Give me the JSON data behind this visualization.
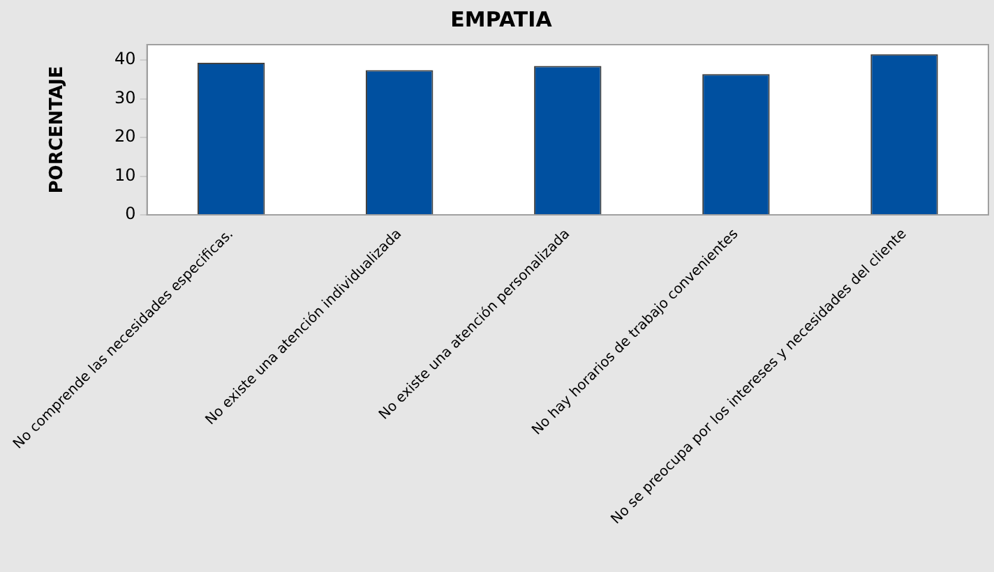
{
  "chart_data": {
    "type": "bar",
    "title": "EMPATIA",
    "ylabel": "PORCENTAJE",
    "categories": [
      "No comprende las necesidades especificas.",
      "No existe una atención individualizada",
      "No existe una atención personalizada",
      "No hay horarios de trabajo convenientes",
      "No se preocupa por los intereses y necesidades del cliente"
    ],
    "values": [
      39.3,
      37.4,
      38.5,
      36.4,
      41.5
    ],
    "color": "#0050a0",
    "ylim": [
      0,
      44
    ],
    "yticks": [
      0,
      10,
      20,
      30,
      40
    ],
    "grid": false,
    "legend": false
  }
}
